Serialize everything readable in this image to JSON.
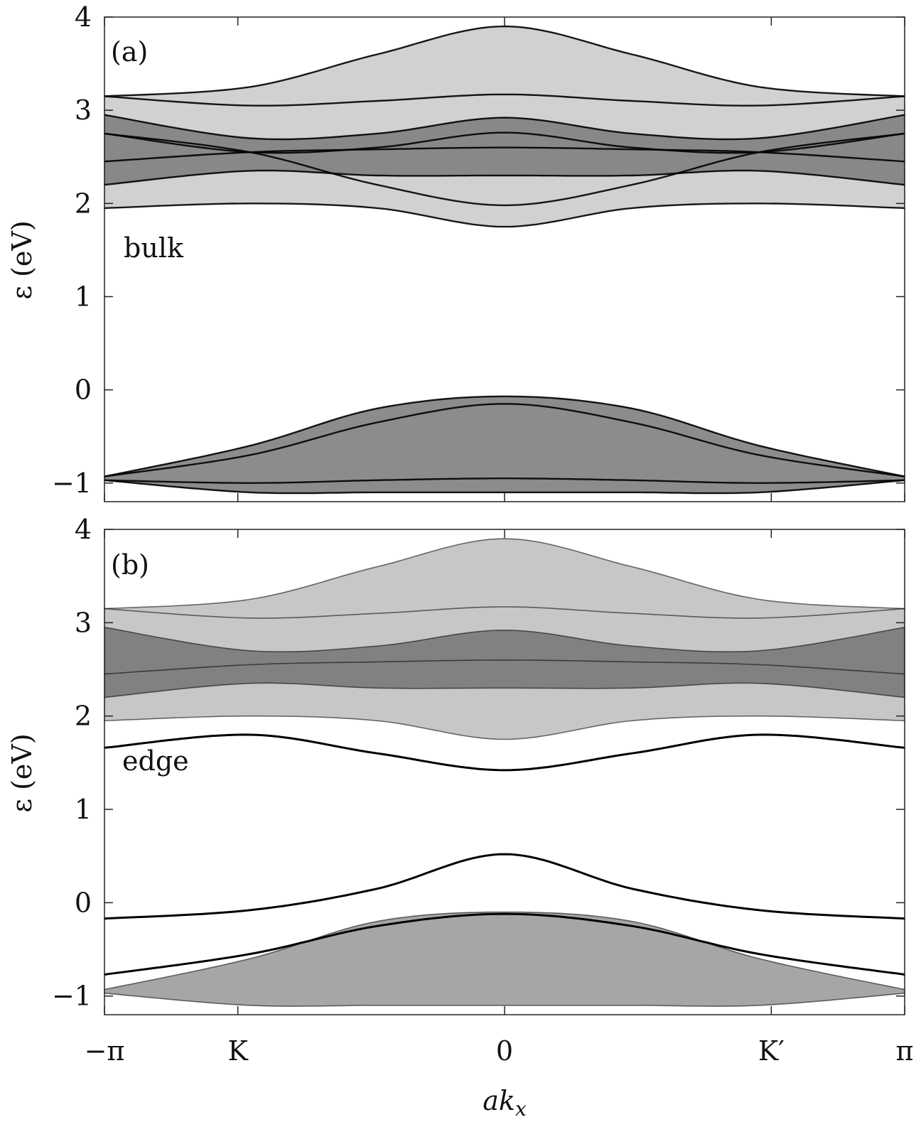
{
  "figure": {
    "xlabel": "ak_x",
    "xlabel_main": "ak",
    "xlabel_sub": "x",
    "x_tick_labels": [
      "−π",
      "K",
      "0",
      "K′",
      "π"
    ]
  },
  "chart_data": [
    {
      "type": "heatmap",
      "panel_label": "(a)",
      "annotation": "bulk",
      "ylabel": "ε (eV)",
      "xlim": [
        -3.1416,
        3.1416
      ],
      "ylim": [
        -1.2,
        4.0
      ],
      "x_ticks": [
        -3.1416,
        -2.0944,
        0,
        2.0944,
        3.1416
      ],
      "y_ticks": [
        4,
        3,
        2,
        1,
        0,
        -1
      ],
      "y_tick_labels": [
        "4",
        "3",
        "2",
        "1",
        "0",
        "−1"
      ],
      "grid": false,
      "colormap": "white-to-black spectral density",
      "bands": [
        {
          "name": "upper-top",
          "x": [
            -3.1416,
            -2.0,
            -1.0,
            0,
            1.0,
            2.0,
            3.1416
          ],
          "y": [
            3.15,
            3.25,
            3.6,
            3.9,
            3.6,
            3.25,
            3.15
          ]
        },
        {
          "name": "upper-3.15",
          "x": [
            -3.1416,
            -2.0,
            -1.0,
            0,
            1.0,
            2.0,
            3.1416
          ],
          "y": [
            3.15,
            3.05,
            3.1,
            3.17,
            3.1,
            3.05,
            3.15
          ]
        },
        {
          "name": "upper-2.9",
          "x": [
            -3.1416,
            -2.0,
            -1.0,
            0,
            1.0,
            2.0,
            3.1416
          ],
          "y": [
            2.95,
            2.7,
            2.75,
            2.92,
            2.75,
            2.7,
            2.95
          ]
        },
        {
          "name": "upper-2.75",
          "x": [
            -3.1416,
            -2.0,
            -1.0,
            0,
            1.0,
            2.0,
            3.1416
          ],
          "y": [
            2.75,
            2.55,
            2.6,
            2.76,
            2.6,
            2.55,
            2.75
          ]
        },
        {
          "name": "upper-2.6",
          "x": [
            -3.1416,
            -2.0,
            -1.0,
            0,
            1.0,
            2.0,
            3.1416
          ],
          "y": [
            2.45,
            2.55,
            2.58,
            2.6,
            2.58,
            2.55,
            2.45
          ]
        },
        {
          "name": "upper-2.3",
          "x": [
            -3.1416,
            -2.0,
            -1.0,
            0,
            1.0,
            2.0,
            3.1416
          ],
          "y": [
            2.2,
            2.35,
            2.3,
            2.3,
            2.3,
            2.35,
            2.2
          ]
        },
        {
          "name": "upper-cross-1",
          "x": [
            -3.1416,
            -2.0,
            -1.0,
            0,
            1.0,
            2.0,
            3.1416
          ],
          "y": [
            2.75,
            2.55,
            2.2,
            1.98,
            2.2,
            2.55,
            2.75
          ]
        },
        {
          "name": "upper-bottom",
          "x": [
            -3.1416,
            -2.0,
            -1.0,
            0,
            1.0,
            2.0,
            3.1416
          ],
          "y": [
            1.95,
            2.0,
            1.95,
            1.75,
            1.95,
            2.0,
            1.95
          ]
        },
        {
          "name": "lower-top",
          "x": [
            -3.1416,
            -2.0,
            -1.0,
            0,
            1.0,
            2.0,
            3.1416
          ],
          "y": [
            -0.93,
            -0.6,
            -0.2,
            -0.07,
            -0.2,
            -0.6,
            -0.93
          ]
        },
        {
          "name": "lower-mid",
          "x": [
            -3.1416,
            -2.0,
            -1.0,
            0,
            1.0,
            2.0,
            3.1416
          ],
          "y": [
            -0.93,
            -0.7,
            -0.35,
            -0.15,
            -0.35,
            -0.7,
            -0.93
          ]
        },
        {
          "name": "lower-flat",
          "x": [
            -3.1416,
            -2.0,
            -1.0,
            0,
            1.0,
            2.0,
            3.1416
          ],
          "y": [
            -0.97,
            -1.0,
            -0.97,
            -0.95,
            -0.97,
            -1.0,
            -0.97
          ]
        },
        {
          "name": "lower-bottom",
          "x": [
            -3.1416,
            -2.0,
            -1.0,
            0,
            1.0,
            2.0,
            3.1416
          ],
          "y": [
            -0.97,
            -1.1,
            -1.1,
            -1.1,
            -1.1,
            -1.1,
            -0.97
          ]
        }
      ]
    },
    {
      "type": "heatmap",
      "panel_label": "(b)",
      "annotation": "edge",
      "ylabel": "ε (eV)",
      "xlim": [
        -3.1416,
        3.1416
      ],
      "ylim": [
        -1.2,
        4.0
      ],
      "x_ticks": [
        -3.1416,
        -2.0944,
        0,
        2.0944,
        3.1416
      ],
      "y_ticks": [
        4,
        3,
        2,
        1,
        0,
        -1
      ],
      "y_tick_labels": [
        "4",
        "3",
        "2",
        "1",
        "0",
        "−1"
      ],
      "grid": false,
      "colormap": "white-to-black spectral density",
      "edge_states": [
        {
          "name": "edge-state-upper",
          "x": [
            -3.1416,
            -2.0,
            -1.0,
            0,
            1.0,
            2.0,
            3.1416
          ],
          "y": [
            1.66,
            1.8,
            1.6,
            1.42,
            1.6,
            1.8,
            1.66
          ]
        },
        {
          "name": "edge-state-lower",
          "x": [
            -3.1416,
            -2.0,
            -1.0,
            0,
            1.0,
            2.0,
            3.1416
          ],
          "y": [
            -0.17,
            -0.08,
            0.15,
            0.52,
            0.15,
            -0.08,
            -0.17
          ]
        },
        {
          "name": "edge-state-bottom",
          "x": [
            -3.1416,
            -2.0,
            -1.0,
            0,
            1.0,
            2.0,
            3.1416
          ],
          "y": [
            -0.77,
            -0.55,
            -0.25,
            -0.12,
            -0.25,
            -0.55,
            -0.77
          ]
        }
      ],
      "bands": [
        {
          "name": "upper-top",
          "x": [
            -3.1416,
            -2.0,
            -1.0,
            0,
            1.0,
            2.0,
            3.1416
          ],
          "y": [
            3.15,
            3.25,
            3.6,
            3.9,
            3.6,
            3.25,
            3.15
          ]
        },
        {
          "name": "upper-3.15",
          "x": [
            -3.1416,
            -2.0,
            -1.0,
            0,
            1.0,
            2.0,
            3.1416
          ],
          "y": [
            3.15,
            3.05,
            3.1,
            3.17,
            3.1,
            3.05,
            3.15
          ]
        },
        {
          "name": "upper-2.9",
          "x": [
            -3.1416,
            -2.0,
            -1.0,
            0,
            1.0,
            2.0,
            3.1416
          ],
          "y": [
            2.95,
            2.7,
            2.75,
            2.92,
            2.75,
            2.7,
            2.95
          ]
        },
        {
          "name": "upper-2.6",
          "x": [
            -3.1416,
            -2.0,
            -1.0,
            0,
            1.0,
            2.0,
            3.1416
          ],
          "y": [
            2.45,
            2.55,
            2.58,
            2.6,
            2.58,
            2.55,
            2.45
          ]
        },
        {
          "name": "upper-2.3",
          "x": [
            -3.1416,
            -2.0,
            -1.0,
            0,
            1.0,
            2.0,
            3.1416
          ],
          "y": [
            2.2,
            2.35,
            2.3,
            2.3,
            2.3,
            2.35,
            2.2
          ]
        },
        {
          "name": "upper-bottom",
          "x": [
            -3.1416,
            -2.0,
            -1.0,
            0,
            1.0,
            2.0,
            3.1416
          ],
          "y": [
            1.95,
            2.0,
            1.95,
            1.75,
            1.95,
            2.0,
            1.95
          ]
        },
        {
          "name": "lower-top",
          "x": [
            -3.1416,
            -2.0,
            -1.0,
            0,
            1.0,
            2.0,
            3.1416
          ],
          "y": [
            -0.93,
            -0.6,
            -0.2,
            -0.1,
            -0.2,
            -0.6,
            -0.93
          ]
        },
        {
          "name": "lower-bottom",
          "x": [
            -3.1416,
            -2.0,
            -1.0,
            0,
            1.0,
            2.0,
            3.1416
          ],
          "y": [
            -0.97,
            -1.1,
            -1.1,
            -1.1,
            -1.1,
            -1.1,
            -0.97
          ]
        }
      ]
    }
  ]
}
